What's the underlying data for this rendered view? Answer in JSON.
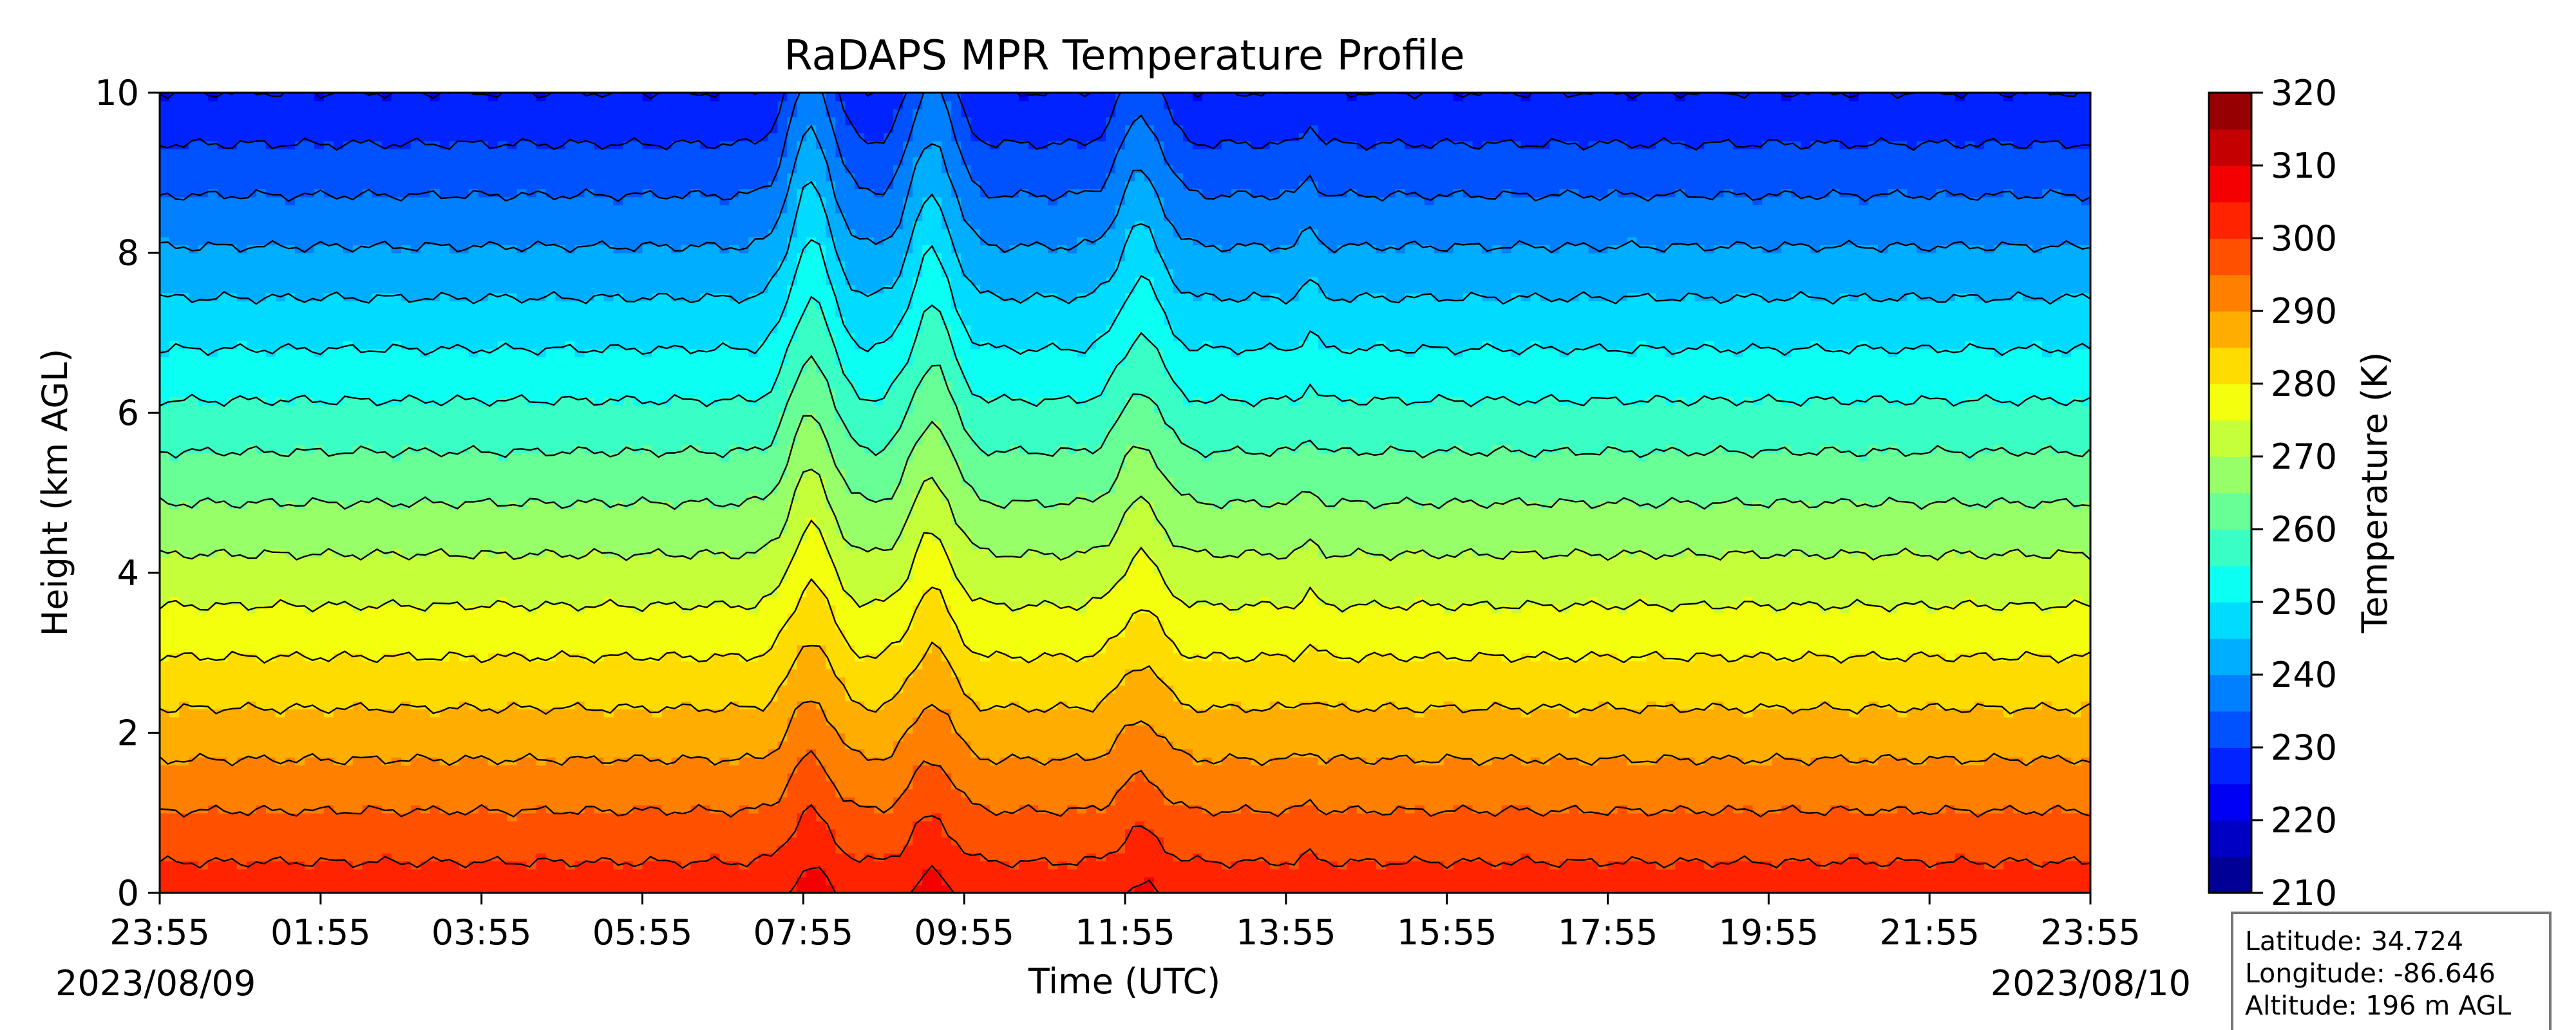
{
  "chart_data": {
    "type": "heatmap",
    "title": "RaDAPS MPR Temperature Profile",
    "xlabel": "Time (UTC)",
    "ylabel": "Height (km AGL)",
    "x_tick_labels": [
      "23:55",
      "01:55",
      "03:55",
      "05:55",
      "07:55",
      "09:55",
      "11:55",
      "13:55",
      "15:55",
      "17:55",
      "19:55",
      "21:55",
      "23:55"
    ],
    "x_range_hours": [
      0,
      24
    ],
    "y_ticks": [
      0,
      2,
      4,
      6,
      8,
      10
    ],
    "ylim": [
      0,
      10
    ],
    "start_date": "2023/08/09",
    "end_date": "2023/08/10",
    "colorbar": {
      "label": "Temperature (K)",
      "ticks": [
        210,
        220,
        230,
        240,
        250,
        260,
        270,
        280,
        290,
        300,
        310,
        320
      ],
      "range": [
        210,
        320
      ],
      "level_step": 5,
      "colormap": "jet"
    },
    "surface_temperature_k": 303,
    "lapse_rate_k_per_km": 7.8,
    "events": [
      {
        "time_h": 8.1,
        "peak_anomaly_k": 12
      },
      {
        "time_h": 9.6,
        "peak_anomaly_k": 11
      },
      {
        "time_h": 12.2,
        "peak_anomaly_k": 8
      },
      {
        "time_h": 14.3,
        "peak_anomaly_k": 2
      }
    ]
  },
  "station_info": {
    "latitude": "Latitude: 34.724",
    "longitude": "Longitude: -86.646",
    "altitude": "Altitude: 196 m AGL"
  }
}
